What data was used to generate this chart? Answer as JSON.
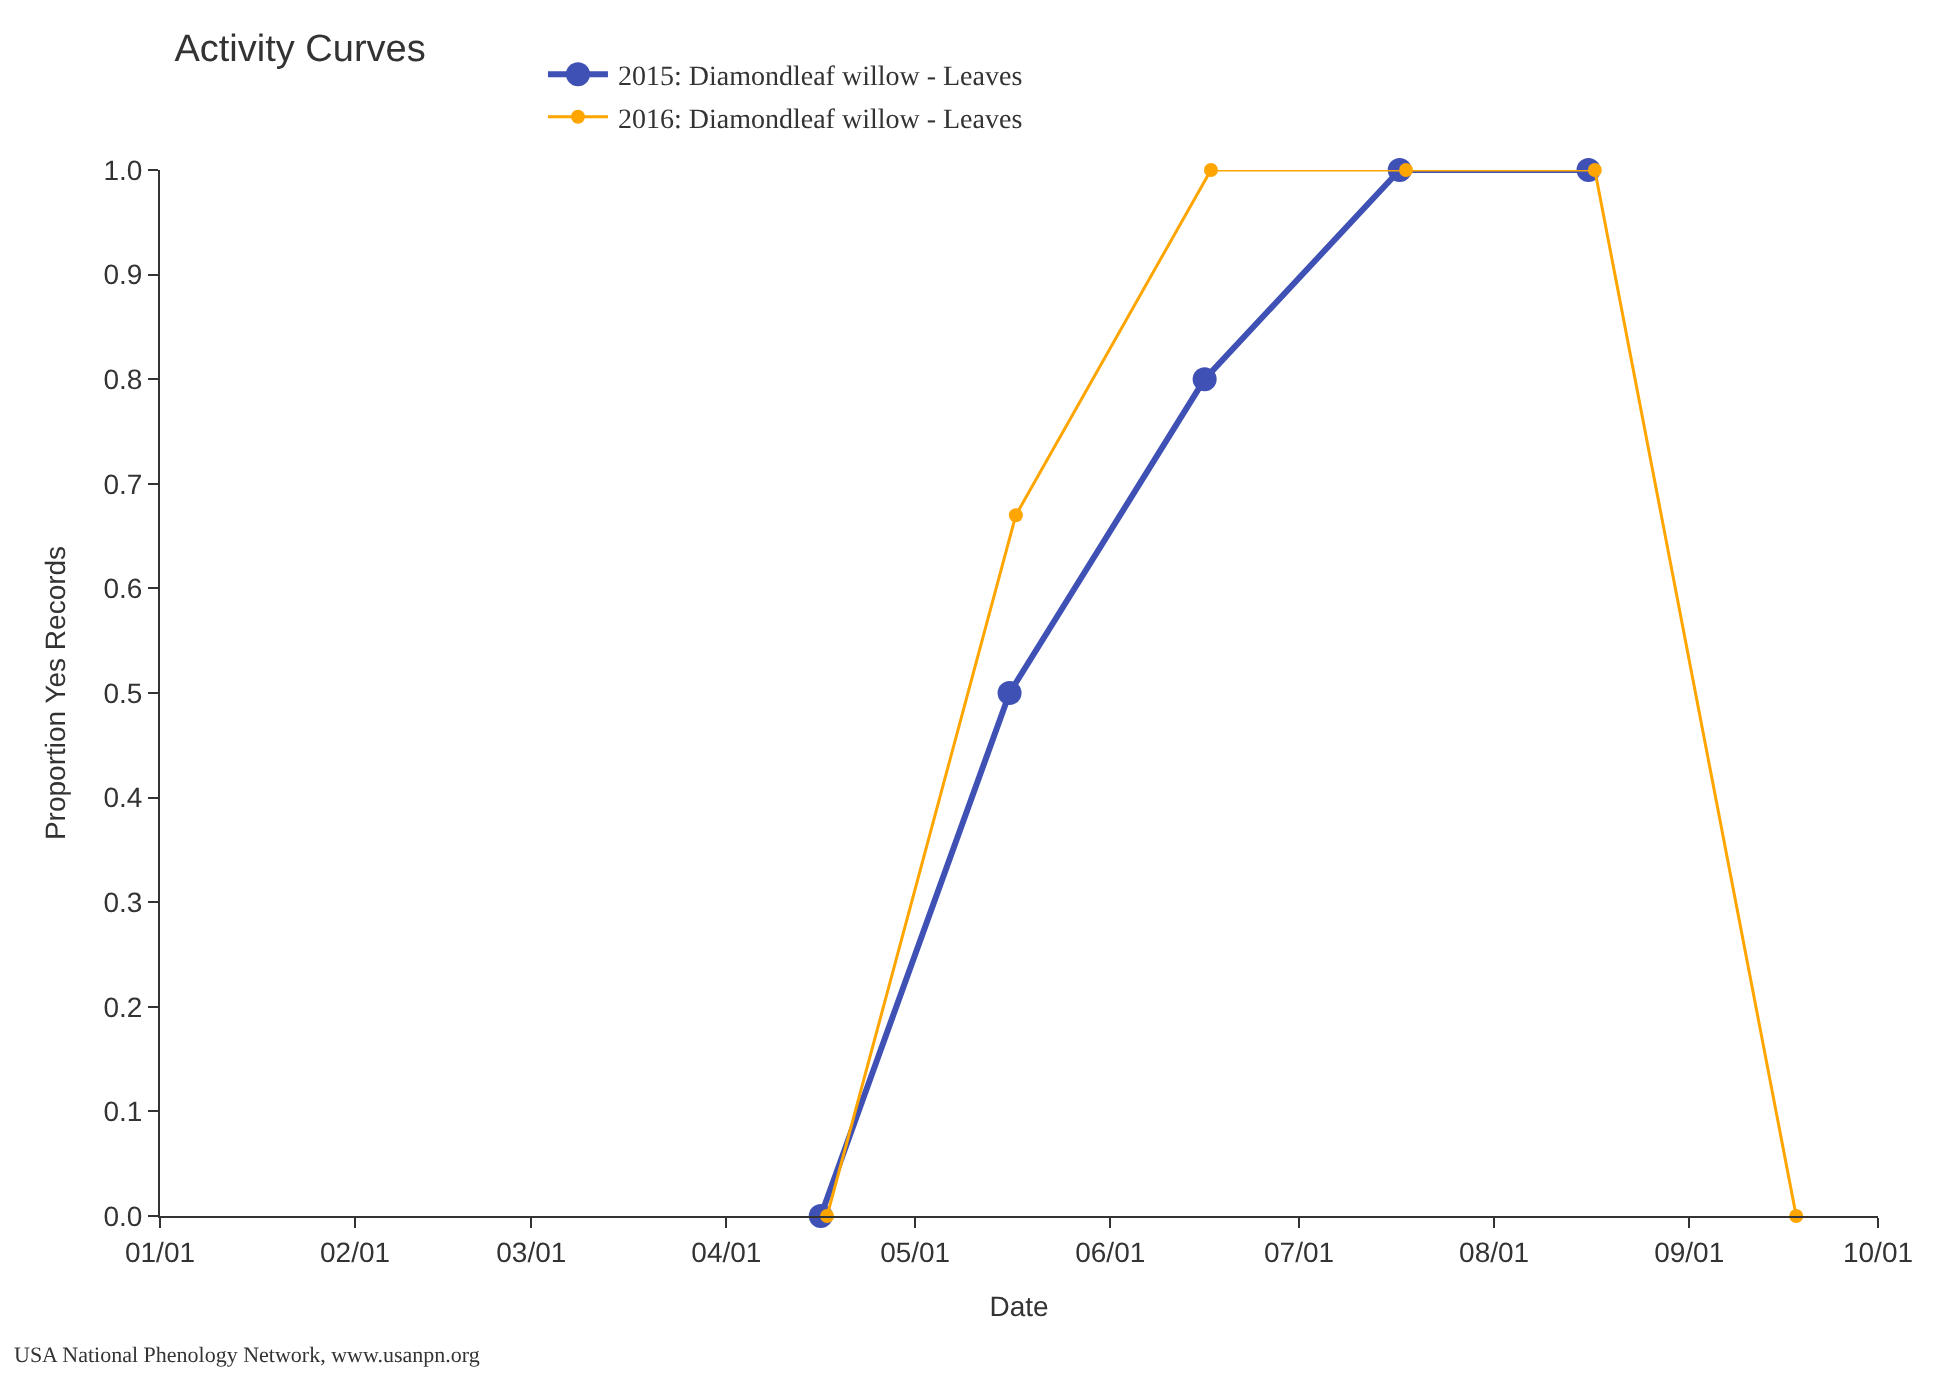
{
  "chart_data": {
    "type": "line",
    "title": "Activity Curves",
    "xlabel": "Date",
    "ylabel": "Proportion Yes Records",
    "series": [
      {
        "name": "2015: Diamondleaf willow - Leaves",
        "color": "#3f51b5",
        "x": [
          "--04-16",
          "--05-16",
          "--06-16",
          "--07-17",
          "--08-16"
        ],
        "values": [
          0,
          0.5,
          0.8,
          1.0,
          1.0
        ]
      },
      {
        "name": "2016: Diamondleaf willow - Leaves",
        "color": "#ffa500",
        "x": [
          "--04-17",
          "--05-17",
          "--06-17",
          "--07-18",
          "--08-17",
          "--09-18"
        ],
        "values": [
          0,
          0.67,
          1.0,
          1.0,
          1.0,
          0
        ]
      }
    ],
    "xlim": [
      "--01-01",
      "--10-01"
    ],
    "xticks": [
      {
        "value": "--01-01",
        "label": "01/01"
      },
      {
        "value": "--02-01",
        "label": "02/01"
      },
      {
        "value": "--03-01",
        "label": "03/01"
      },
      {
        "value": "--04-01",
        "label": "04/01"
      },
      {
        "value": "--05-01",
        "label": "05/01"
      },
      {
        "value": "--06-01",
        "label": "06/01"
      },
      {
        "value": "--07-01",
        "label": "07/01"
      },
      {
        "value": "--08-01",
        "label": "08/01"
      },
      {
        "value": "--09-01",
        "label": "09/01"
      },
      {
        "value": "--10-01",
        "label": "10/01"
      }
    ],
    "ylim": [
      0,
      1.0
    ],
    "yticks": [
      {
        "value": 0,
        "label": "0.0"
      },
      {
        "value": 0.1,
        "label": "0.1"
      },
      {
        "value": 0.2,
        "label": "0.2"
      },
      {
        "value": 0.3,
        "label": "0.3"
      },
      {
        "value": 0.4,
        "label": "0.4"
      },
      {
        "value": 0.5,
        "label": "0.5"
      },
      {
        "value": 0.6,
        "label": "0.6"
      },
      {
        "value": 0.7,
        "label": "0.7"
      },
      {
        "value": 0.8,
        "label": "0.8"
      },
      {
        "value": 0.9,
        "label": "0.9"
      },
      {
        "value": 1.0,
        "label": "1.0"
      }
    ],
    "annotations": [
      "USA National Phenology Network, www.usanpn.org"
    ],
    "legend": "top",
    "marker": "circle",
    "line_style": "solid"
  }
}
